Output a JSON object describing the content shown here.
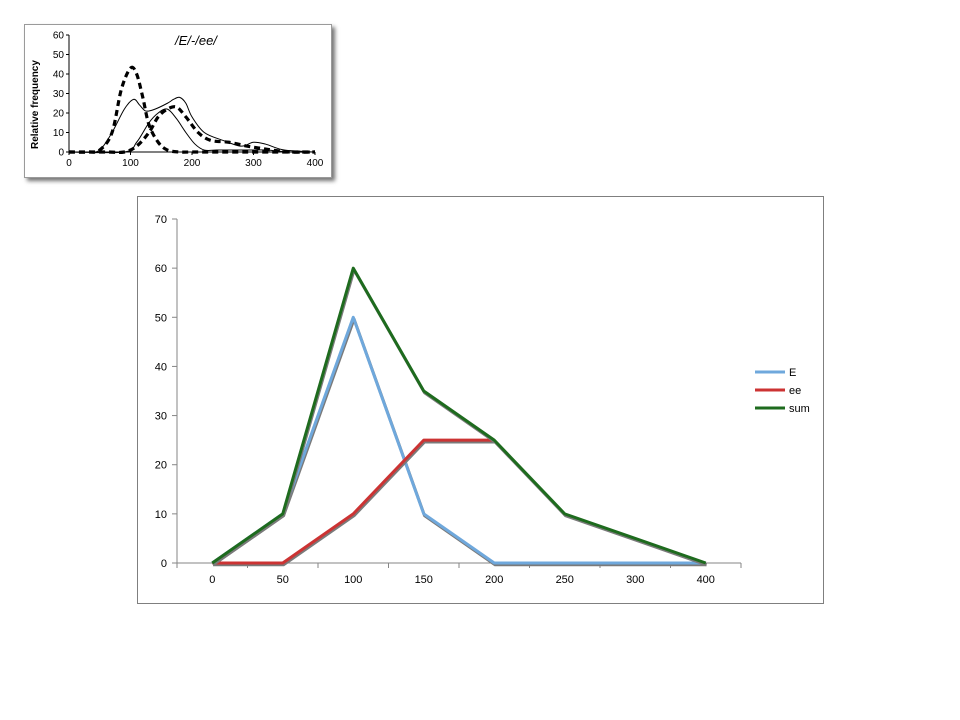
{
  "chart_data": [
    {
      "type": "line",
      "title": "/E/-/ee/",
      "xlabel": "",
      "ylabel": "Relative frequency",
      "xlim": [
        0,
        400
      ],
      "ylim": [
        0,
        60
      ],
      "x_ticks": [
        "0",
        "100",
        "200",
        "300",
        "400"
      ],
      "y_ticks": [
        "0",
        "10",
        "20",
        "30",
        "40",
        "50",
        "60"
      ],
      "grid": false,
      "legend": "none",
      "series": [
        {
          "style": "dashed",
          "color": "#000000",
          "x": [
            0,
            30,
            50,
            70,
            85,
            100,
            110,
            120,
            130,
            145,
            160,
            180,
            200,
            220,
            250,
            280,
            300,
            330,
            360,
            400
          ],
          "y": [
            0,
            0,
            1,
            10,
            32,
            43,
            40,
            28,
            14,
            5,
            1,
            0,
            0,
            0,
            0,
            0,
            0,
            0,
            0,
            0
          ]
        },
        {
          "style": "dashed",
          "color": "#000000",
          "x": [
            0,
            60,
            90,
            110,
            130,
            145,
            160,
            175,
            190,
            210,
            230,
            260,
            290,
            310,
            330,
            360,
            400
          ],
          "y": [
            0,
            0,
            0,
            3,
            10,
            18,
            22,
            23,
            18,
            10,
            6,
            5,
            3,
            2,
            1,
            0,
            0
          ]
        },
        {
          "style": "solid",
          "color": "#000000",
          "x": [
            0,
            30,
            50,
            70,
            90,
            105,
            115,
            125,
            140,
            160,
            170,
            180,
            190,
            200,
            220,
            250,
            280,
            300,
            320,
            350,
            400
          ],
          "y": [
            0,
            0,
            1,
            10,
            22,
            27,
            24,
            21,
            22,
            25,
            27,
            28,
            25,
            18,
            10,
            6,
            3,
            5,
            4,
            1,
            0
          ]
        },
        {
          "style": "solid",
          "color": "#000000",
          "x": [
            0,
            90,
            110,
            130,
            145,
            160,
            175,
            190,
            205,
            220,
            240,
            260,
            290,
            320,
            360,
            400
          ],
          "y": [
            0,
            0,
            5,
            15,
            20,
            22,
            17,
            10,
            4,
            1,
            1,
            1,
            1,
            1,
            0,
            0
          ]
        }
      ]
    },
    {
      "type": "line",
      "title": "",
      "xlabel": "",
      "ylabel": "",
      "categories": [
        "0",
        "50",
        "100",
        "150",
        "200",
        "250",
        "300",
        "400"
      ],
      "ylim": [
        0,
        70
      ],
      "y_ticks": [
        "0",
        "10",
        "20",
        "30",
        "40",
        "50",
        "60",
        "70"
      ],
      "grid": false,
      "legend": "right",
      "series": [
        {
          "name": "E",
          "color": "#6FA8DC",
          "values": [
            0,
            10,
            50,
            10,
            0,
            0,
            0,
            0
          ]
        },
        {
          "name": "ee",
          "color": "#CC3333",
          "values": [
            0,
            0,
            10,
            25,
            25,
            null,
            null,
            null
          ]
        },
        {
          "name": "sum",
          "color": "#1E6B1E",
          "values": [
            0,
            10,
            60,
            35,
            25,
            10,
            5,
            0
          ]
        }
      ]
    }
  ]
}
